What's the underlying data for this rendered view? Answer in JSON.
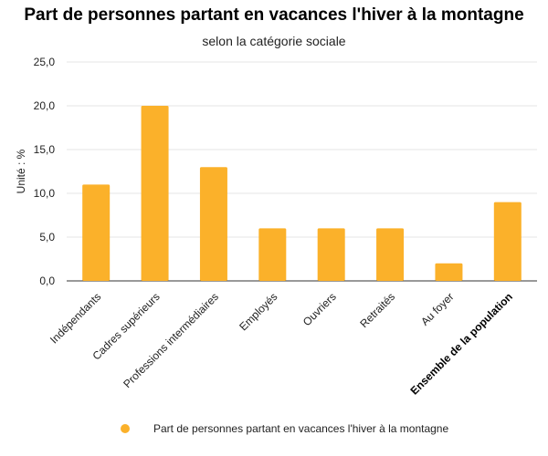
{
  "colors": {
    "bar": "#FBB12A",
    "grid": "#e6e6e6",
    "axis": "#333333",
    "text": "#222222"
  },
  "chart_data": {
    "type": "bar",
    "title": "Part de personnes partant en vacances l'hiver à la montagne",
    "subtitle": "selon la catégorie sociale",
    "ylabel": "Unité : %",
    "xlabel": "",
    "ylim": [
      0,
      25
    ],
    "y_ticks": [
      0,
      5,
      10,
      15,
      20,
      25
    ],
    "y_tick_labels": [
      "0,0",
      "5,0",
      "10,0",
      "15,0",
      "20,0",
      "25,0"
    ],
    "grid": true,
    "legend_position": "bottom",
    "categories": [
      "Indépendants",
      "Cadres supérieurs",
      "Professions intermédiaires",
      "Employés",
      "Ouvriers",
      "Retraités",
      "Au foyer",
      "Ensemble de la population"
    ],
    "bold_categories": [
      "Ensemble de la population"
    ],
    "series": [
      {
        "name": "Part de personnes partant en vacances l'hiver à la montagne",
        "values": [
          11,
          20,
          13,
          6,
          6,
          6,
          2,
          9
        ]
      }
    ]
  }
}
